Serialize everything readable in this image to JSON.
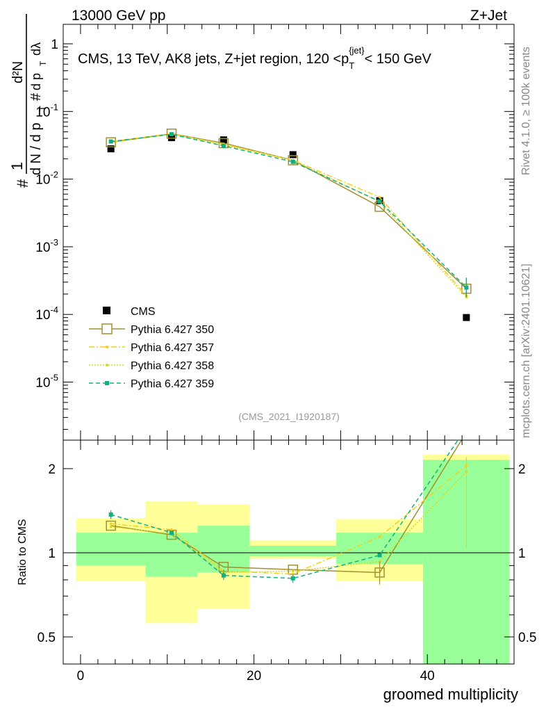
{
  "header": {
    "energy_label": "13000 GeV pp",
    "process_label": "Z+Jet"
  },
  "side_labels": {
    "rivet": "Rivet 4.1.0, ≥ 100k events",
    "mcplots": "mcplots.cern.ch [arXiv:2401.10621]"
  },
  "chart_data": [
    {
      "type": "scatter",
      "panel": "main",
      "title": "CMS, 13 TeV, AK8 jets, Z+jet region, 120 <p_T^{jet}< 150 GeV",
      "watermark": "(CMS_2021_I1920187)",
      "ylabel": "1/dN/dp_T dN^2/dp_T dλ",
      "yscale": "log",
      "ylim": [
        1.2e-06,
        3
      ],
      "xlim": [
        -2,
        50
      ],
      "ytick_labels": [
        "1",
        "10^-1",
        "10^-2",
        "10^-3",
        "10^-4",
        "10^-5"
      ],
      "ytick_values": [
        1,
        0.1,
        0.01,
        0.001,
        0.0001,
        1e-05
      ],
      "legend": [
        "CMS",
        "Pythia 6.427 350",
        "Pythia 6.427 357",
        "Pythia 6.427 358",
        "Pythia 6.427 359"
      ],
      "x_centers": [
        3.5,
        10.5,
        16.5,
        24.5,
        34.5,
        44.5
      ],
      "x_edges": [
        0,
        7,
        14,
        20,
        30,
        40,
        50
      ],
      "series": [
        {
          "name": "CMS",
          "color": "#000000",
          "values": [
            0.028,
            0.041,
            0.038,
            0.023,
            0.0048,
            9e-05
          ]
        },
        {
          "name": "Pythia 6.427 350",
          "color": "#a09030",
          "values": [
            0.035,
            0.047,
            0.034,
            0.019,
            0.0039,
            0.00024
          ]
        },
        {
          "name": "Pythia 6.427 357",
          "color": "#f0d020",
          "values": [
            0.036,
            0.047,
            0.033,
            0.019,
            0.0054,
            0.00019
          ]
        },
        {
          "name": "Pythia 6.427 358",
          "color": "#d8d818",
          "values": [
            0.035,
            0.046,
            0.032,
            0.019,
            0.0046,
            0.00018
          ]
        },
        {
          "name": "Pythia 6.427 359",
          "color": "#10b080",
          "values": [
            0.036,
            0.046,
            0.031,
            0.018,
            0.0047,
            0.00025
          ]
        }
      ]
    },
    {
      "type": "line",
      "panel": "ratio",
      "ylabel": "Ratio to CMS",
      "xlabel": "groomed multiplicity",
      "ylim": [
        0.35,
        2.25
      ],
      "xlim": [
        -2,
        50
      ],
      "xtick_labels": [
        "0",
        "20",
        "40"
      ],
      "xtick_values": [
        0,
        20,
        40
      ],
      "ytick_labels": [
        "0.5",
        "1",
        "2"
      ],
      "ytick_values": [
        0.5,
        1,
        2
      ],
      "uncertainty_bands": {
        "x_edges": [
          -0.5,
          7.5,
          13.5,
          19.5,
          29.5,
          39.5,
          49.5
        ],
        "yellow_low": [
          0.79,
          0.56,
          0.63,
          0.95,
          0.79,
          0.35
        ],
        "yellow_high": [
          1.33,
          1.53,
          1.49,
          1.11,
          1.32,
          2.25
        ],
        "green_low": [
          0.9,
          0.82,
          0.85,
          0.97,
          0.91,
          0.35
        ],
        "green_high": [
          1.18,
          1.18,
          1.25,
          1.06,
          1.18,
          2.15
        ]
      },
      "x_centers": [
        3.5,
        10.5,
        16.5,
        24.5,
        34.5,
        44.5
      ],
      "series": [
        {
          "name": "Pythia 6.427 350",
          "color": "#a09030",
          "values": [
            1.25,
            1.16,
            0.89,
            0.87,
            0.85,
            2.7
          ]
        },
        {
          "name": "Pythia 6.427 357",
          "color": "#f0d020",
          "values": [
            1.27,
            1.21,
            0.86,
            0.84,
            1.14,
            2.05
          ]
        },
        {
          "name": "Pythia 6.427 358",
          "color": "#d8d818",
          "values": [
            1.24,
            1.17,
            0.85,
            0.86,
            0.93,
            1.95
          ]
        },
        {
          "name": "Pythia 6.427 359",
          "color": "#10b080",
          "values": [
            1.37,
            1.18,
            0.83,
            0.81,
            0.98,
            2.8
          ]
        }
      ]
    }
  ]
}
